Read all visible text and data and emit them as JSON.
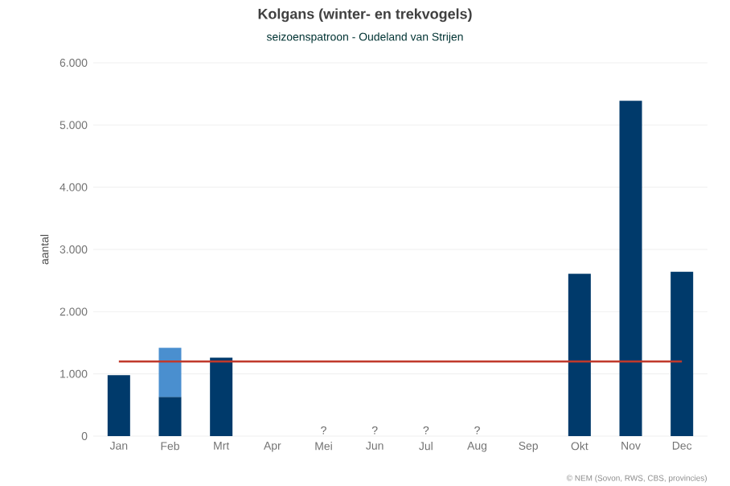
{
  "chart_data": {
    "type": "bar",
    "stacked": true,
    "title": "Kolgans (winter- en trekvogels)",
    "subtitle": "seizoenspatroon - Oudeland van Strijen",
    "ylabel": "aantal",
    "categories": [
      "Jan",
      "Feb",
      "Mrt",
      "Apr",
      "Mei",
      "Jun",
      "Jul",
      "Aug",
      "Sep",
      "Okt",
      "Nov",
      "Dec"
    ],
    "series": [
      {
        "color": "#003a6b",
        "values": [
          980,
          630,
          1260,
          null,
          null,
          null,
          null,
          null,
          null,
          2610,
          5390,
          2640
        ]
      },
      {
        "color": "#4a8fcf",
        "values": [
          null,
          790,
          null,
          null,
          null,
          null,
          null,
          null,
          null,
          null,
          null,
          null
        ]
      }
    ],
    "ylim": [
      0,
      6000
    ],
    "yticks": [
      {
        "value": 0,
        "label": "0"
      },
      {
        "value": 1000,
        "label": "1.000"
      },
      {
        "value": 2000,
        "label": "2.000"
      },
      {
        "value": 3000,
        "label": "3.000"
      },
      {
        "value": 4000,
        "label": "4.000"
      },
      {
        "value": 5000,
        "label": "5.000"
      },
      {
        "value": 6000,
        "label": "6.000"
      }
    ],
    "grid": "y",
    "ref_lines": [
      {
        "axis": "y",
        "value": 1200,
        "color": "#c0392b"
      }
    ],
    "annotations": [
      "?",
      "?",
      "?",
      "?",
      "© NEM (Sovon, RWS, CBS, provincies)"
    ]
  }
}
